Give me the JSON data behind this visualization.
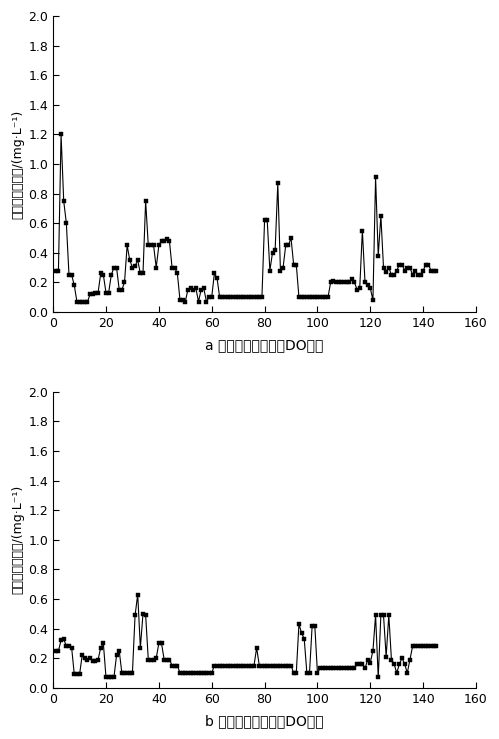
{
  "chart_a": {
    "title": "a 优化前生物池末端DO情况",
    "ylabel": "末端溶解氧浓度/(mg·L⁻¹)",
    "x": [
      1,
      2,
      3,
      4,
      5,
      6,
      7,
      8,
      9,
      10,
      11,
      12,
      13,
      14,
      15,
      16,
      17,
      18,
      19,
      20,
      21,
      22,
      23,
      24,
      25,
      26,
      27,
      28,
      29,
      30,
      31,
      32,
      33,
      34,
      35,
      36,
      37,
      38,
      39,
      40,
      41,
      42,
      43,
      44,
      45,
      46,
      47,
      48,
      49,
      50,
      51,
      52,
      53,
      54,
      55,
      56,
      57,
      58,
      59,
      60,
      61,
      62,
      63,
      64,
      65,
      66,
      67,
      68,
      69,
      70,
      71,
      72,
      73,
      74,
      75,
      76,
      77,
      78,
      79,
      80,
      81,
      82,
      83,
      84,
      85,
      86,
      87,
      88,
      89,
      90,
      91,
      92,
      93,
      94,
      95,
      96,
      97,
      98,
      99,
      100,
      101,
      102,
      103,
      104,
      105,
      106,
      107,
      108,
      109,
      110,
      111,
      112,
      113,
      114,
      115,
      116,
      117,
      118,
      119,
      120,
      121,
      122,
      123,
      124,
      125,
      126,
      127,
      128,
      129,
      130,
      131,
      132,
      133,
      134,
      135,
      136,
      137,
      138,
      139,
      140,
      141,
      142,
      143,
      144,
      145
    ],
    "y": [
      0.28,
      0.28,
      1.2,
      0.75,
      0.6,
      0.25,
      0.25,
      0.18,
      0.07,
      0.07,
      0.07,
      0.07,
      0.07,
      0.12,
      0.12,
      0.13,
      0.13,
      0.26,
      0.25,
      0.13,
      0.13,
      0.25,
      0.3,
      0.3,
      0.15,
      0.15,
      0.2,
      0.45,
      0.35,
      0.3,
      0.31,
      0.35,
      0.26,
      0.26,
      0.75,
      0.45,
      0.45,
      0.45,
      0.3,
      0.45,
      0.48,
      0.48,
      0.49,
      0.48,
      0.3,
      0.3,
      0.26,
      0.08,
      0.08,
      0.07,
      0.15,
      0.16,
      0.15,
      0.16,
      0.07,
      0.15,
      0.16,
      0.07,
      0.1,
      0.1,
      0.26,
      0.23,
      0.1,
      0.1,
      0.1,
      0.1,
      0.1,
      0.1,
      0.1,
      0.1,
      0.1,
      0.1,
      0.1,
      0.1,
      0.1,
      0.1,
      0.1,
      0.1,
      0.1,
      0.62,
      0.62,
      0.28,
      0.4,
      0.42,
      0.87,
      0.28,
      0.3,
      0.45,
      0.45,
      0.5,
      0.32,
      0.32,
      0.1,
      0.1,
      0.1,
      0.1,
      0.1,
      0.1,
      0.1,
      0.1,
      0.1,
      0.1,
      0.1,
      0.1,
      0.2,
      0.21,
      0.2,
      0.2,
      0.2,
      0.2,
      0.2,
      0.2,
      0.22,
      0.2,
      0.15,
      0.16,
      0.55,
      0.2,
      0.18,
      0.16,
      0.08,
      0.91,
      0.38,
      0.65,
      0.3,
      0.27,
      0.3,
      0.25,
      0.25,
      0.28,
      0.32,
      0.32,
      0.28,
      0.3,
      0.3,
      0.25,
      0.28,
      0.25,
      0.25,
      0.28,
      0.32,
      0.32,
      0.28,
      0.28,
      0.28
    ]
  },
  "chart_b": {
    "title": "b 优化后生物池末端DO情况",
    "ylabel": "末端溶解氧浓度/(mg·L⁻¹)",
    "x": [
      1,
      2,
      3,
      4,
      5,
      6,
      7,
      8,
      9,
      10,
      11,
      12,
      13,
      14,
      15,
      16,
      17,
      18,
      19,
      20,
      21,
      22,
      23,
      24,
      25,
      26,
      27,
      28,
      29,
      30,
      31,
      32,
      33,
      34,
      35,
      36,
      37,
      38,
      39,
      40,
      41,
      42,
      43,
      44,
      45,
      46,
      47,
      48,
      49,
      50,
      51,
      52,
      53,
      54,
      55,
      56,
      57,
      58,
      59,
      60,
      61,
      62,
      63,
      64,
      65,
      66,
      67,
      68,
      69,
      70,
      71,
      72,
      73,
      74,
      75,
      76,
      77,
      78,
      79,
      80,
      81,
      82,
      83,
      84,
      85,
      86,
      87,
      88,
      89,
      90,
      91,
      92,
      93,
      94,
      95,
      96,
      97,
      98,
      99,
      100,
      101,
      102,
      103,
      104,
      105,
      106,
      107,
      108,
      109,
      110,
      111,
      112,
      113,
      114,
      115,
      116,
      117,
      118,
      119,
      120,
      121,
      122,
      123,
      124,
      125,
      126,
      127,
      128,
      129,
      130,
      131,
      132,
      133,
      134,
      135,
      136,
      137,
      138,
      139,
      140,
      141,
      142,
      143,
      144,
      145
    ],
    "y": [
      0.25,
      0.25,
      0.32,
      0.33,
      0.28,
      0.28,
      0.27,
      0.09,
      0.09,
      0.09,
      0.22,
      0.2,
      0.19,
      0.2,
      0.18,
      0.18,
      0.19,
      0.27,
      0.3,
      0.07,
      0.07,
      0.07,
      0.07,
      0.22,
      0.25,
      0.1,
      0.1,
      0.1,
      0.1,
      0.1,
      0.49,
      0.63,
      0.27,
      0.5,
      0.49,
      0.19,
      0.19,
      0.19,
      0.2,
      0.3,
      0.3,
      0.19,
      0.19,
      0.19,
      0.15,
      0.15,
      0.15,
      0.1,
      0.1,
      0.1,
      0.1,
      0.1,
      0.1,
      0.1,
      0.1,
      0.1,
      0.1,
      0.1,
      0.1,
      0.1,
      0.15,
      0.15,
      0.15,
      0.15,
      0.15,
      0.15,
      0.15,
      0.15,
      0.15,
      0.15,
      0.15,
      0.15,
      0.15,
      0.15,
      0.15,
      0.15,
      0.27,
      0.15,
      0.15,
      0.15,
      0.15,
      0.15,
      0.15,
      0.15,
      0.15,
      0.15,
      0.15,
      0.15,
      0.15,
      0.15,
      0.1,
      0.1,
      0.43,
      0.37,
      0.33,
      0.1,
      0.1,
      0.42,
      0.42,
      0.1,
      0.13,
      0.13,
      0.13,
      0.13,
      0.13,
      0.13,
      0.13,
      0.13,
      0.13,
      0.13,
      0.13,
      0.13,
      0.13,
      0.13,
      0.16,
      0.16,
      0.16,
      0.13,
      0.19,
      0.17,
      0.25,
      0.49,
      0.07,
      0.49,
      0.49,
      0.21,
      0.49,
      0.19,
      0.16,
      0.1,
      0.16,
      0.2,
      0.16,
      0.1,
      0.19,
      0.28,
      0.28,
      0.28,
      0.28,
      0.28,
      0.28,
      0.28,
      0.28,
      0.28,
      0.28
    ]
  },
  "xlim": [
    0,
    160
  ],
  "ylim": [
    0,
    2.0
  ],
  "yticks": [
    0.0,
    0.2,
    0.4,
    0.6,
    0.8,
    1.0,
    1.2,
    1.4,
    1.6,
    1.8,
    2.0
  ],
  "xticks": [
    0,
    20,
    40,
    60,
    80,
    100,
    120,
    140,
    160
  ],
  "bg_color": "#ffffff",
  "line_color": "#000000",
  "marker": "s",
  "markersize": 3.5,
  "linewidth": 0.8
}
